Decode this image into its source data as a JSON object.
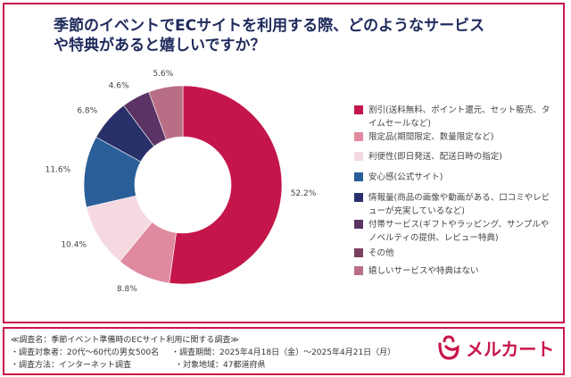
{
  "title_lines": [
    "季節のイベントでECサイトを利用する際、どのようなサービス",
    "や特典があると嬉しいですか？"
  ],
  "chart_data": {
    "type": "pie",
    "donut": true,
    "title": "季節のイベントでECサイトを利用する際、どのようなサービスや特典があると嬉しいですか？",
    "unit": "%",
    "legend_position": "right",
    "categories": [
      "割引(送料無料、ポイント還元、セット販売、タイムセールなど)",
      "限定品(期間限定、数量限定など)",
      "利便性(即日発送、配送日時の指定)",
      "安心感(公式サイト)",
      "情報量(商品の画像や動画がある、口コミやレビューが充実しているなど)",
      "付帯サービス(ギフトやラッピング、サンプルやノベルティの提供、レビュー特典)",
      "その他",
      "嬉しいサービスや特典はない"
    ],
    "values": [
      52.2,
      8.8,
      10.4,
      11.6,
      6.8,
      4.6,
      0,
      5.6
    ],
    "labels": [
      "52.2%",
      "8.8%",
      "10.4%",
      "11.6%",
      "6.8%",
      "4.6%",
      "",
      "5.6%"
    ],
    "colors": [
      "#c4164a",
      "#e08aa0",
      "#f4d9e1",
      "#2a5e98",
      "#283069",
      "#5b3465",
      "#7a4060",
      "#b86f85"
    ]
  },
  "footer": {
    "survey_name": "≪調査名：季節イベント準備時のECサイト利用に関する調査≫",
    "target": "・調査対象者：20代～60代の男女500名",
    "period": "・調査期間：2025年4月18日（金）～2025年4月21日（月）",
    "method": "・調査方法：インターネット調査",
    "region": "・対象地域：47都道府県"
  },
  "logo": {
    "text": "メルカート",
    "color": "#c8174b"
  }
}
